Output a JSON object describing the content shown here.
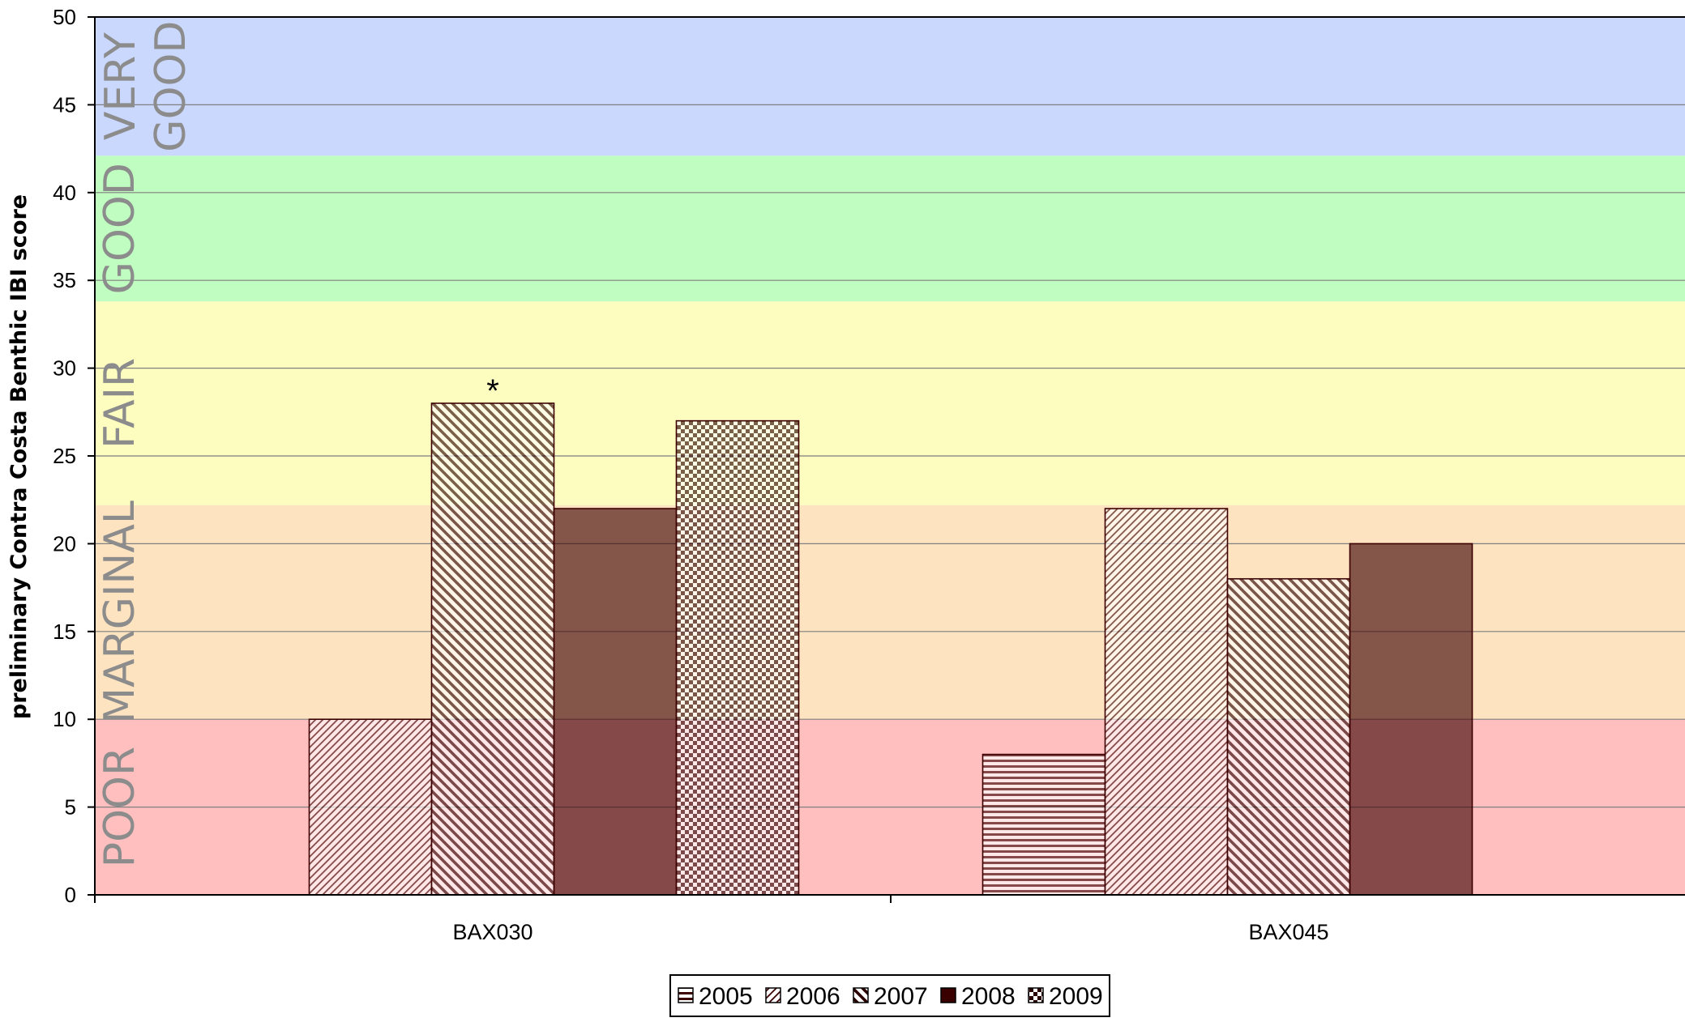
{
  "chart_data": {
    "type": "bar",
    "title": "",
    "xlabel": "",
    "ylabel": "preliminary Contra Costa Benthic IBI score",
    "ylim": [
      0,
      50
    ],
    "y_ticks": [
      "0",
      "5",
      "10",
      "15",
      "20",
      "25",
      "30",
      "35",
      "40",
      "45",
      "50"
    ],
    "grid": true,
    "legend_position": "bottom",
    "categories": [
      "BAX030",
      "BAX045"
    ],
    "series": [
      {
        "name": "2005",
        "pattern": "horizontal-lines",
        "values": [
          null,
          8
        ]
      },
      {
        "name": "2006",
        "pattern": "fine-diagonal-up",
        "values": [
          10,
          22
        ]
      },
      {
        "name": "2007",
        "pattern": "wide-diagonal-down",
        "values": [
          28,
          18
        ]
      },
      {
        "name": "2008",
        "pattern": "solid-dark",
        "values": [
          22,
          20
        ]
      },
      {
        "name": "2009",
        "pattern": "checkerboard",
        "values": [
          27,
          null
        ]
      }
    ],
    "bands": [
      {
        "label": "POOR",
        "from": 0,
        "to": 10,
        "color": "#ffbfbf"
      },
      {
        "label": "MARGINAL",
        "from": 10,
        "to": 22.2,
        "color": "#fde3c0"
      },
      {
        "label": "FAIR",
        "from": 22.2,
        "to": 33.8,
        "color": "#fdfdc0"
      },
      {
        "label": "GOOD",
        "from": 33.8,
        "to": 42.1,
        "color": "#c0fdc0"
      },
      {
        "label": "VERY\nGOOD",
        "from": 42.1,
        "to": 50,
        "color": "#cad8fd"
      }
    ],
    "annotations": [
      {
        "text": "*",
        "category": "BAX030",
        "series": "2007"
      }
    ],
    "colors": {
      "bar_fill": "#ffffff",
      "bar_ink": "#3c0000",
      "solid_fill": "#3a0000",
      "grid": "#808080",
      "axis": "#000000",
      "band_text": "#8c8c8c"
    }
  }
}
